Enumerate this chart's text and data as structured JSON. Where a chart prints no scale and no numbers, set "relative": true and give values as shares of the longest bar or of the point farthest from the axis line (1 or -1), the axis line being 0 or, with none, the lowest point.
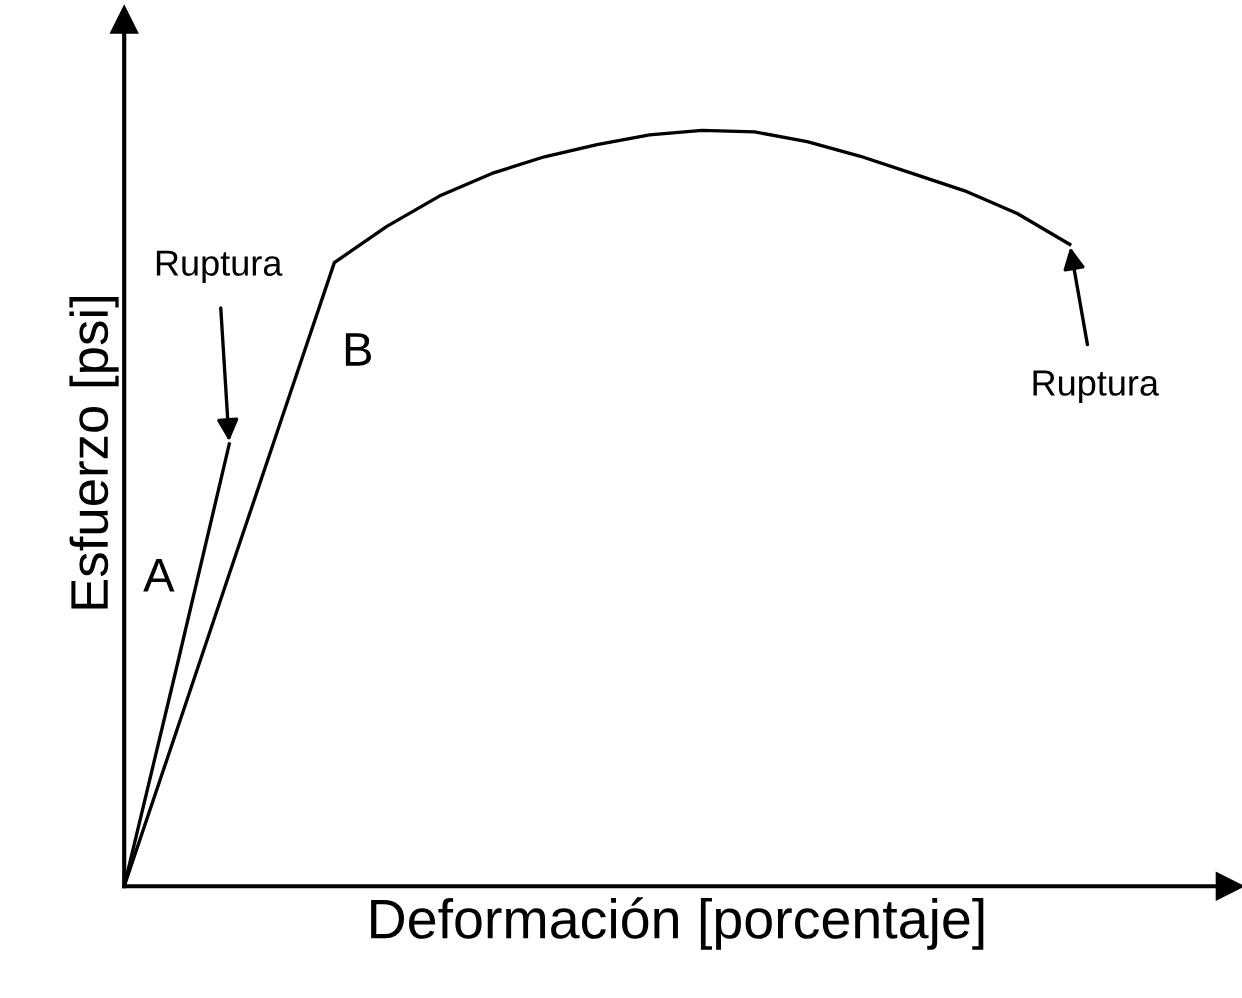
{
  "chart_data": {
    "type": "line",
    "relative": true,
    "xlabel": "Deformación [porcentaje]",
    "ylabel": "Esfuerzo [psi]",
    "categories": [
      null,
      null,
      null,
      null,
      null,
      null,
      null,
      null,
      null,
      null,
      null,
      null,
      null,
      null,
      null,
      null,
      null,
      null,
      null
    ],
    "series": [
      {
        "name": "A",
        "color": "#000000",
        "values": [
          0,
          0.29,
          0.585,
          null,
          null,
          null,
          null,
          null,
          null,
          null,
          null,
          null,
          null,
          null,
          null,
          null,
          null,
          null,
          null
        ]
      },
      {
        "name": "B",
        "color": "#000000",
        "values": [
          0,
          0.206,
          0.413,
          0.619,
          0.825,
          0.873,
          0.913,
          0.943,
          0.965,
          0.981,
          0.994,
          1.0,
          0.998,
          0.985,
          0.966,
          0.943,
          0.92,
          0.89,
          0.849
        ]
      }
    ],
    "annotations": [
      "Ruptura",
      "Ruptura"
    ],
    "marker": "none",
    "line_style": "solid"
  }
}
